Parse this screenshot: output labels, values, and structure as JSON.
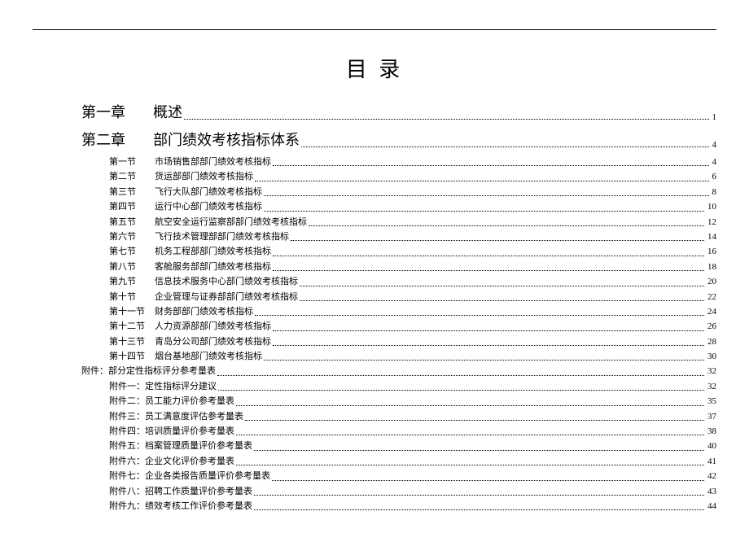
{
  "title": "目 录",
  "chapters": [
    {
      "label": "第一章",
      "text": "概述",
      "page": "1"
    },
    {
      "label": "第二章",
      "text": "部门绩效考核指标体系",
      "page": "4"
    }
  ],
  "sections": [
    {
      "label": "第一节",
      "text": "市场销售部部门绩效考核指标",
      "page": "4"
    },
    {
      "label": "第二节",
      "text": "货运部部门绩效考核指标",
      "page": "6"
    },
    {
      "label": "第三节",
      "text": "飞行大队部门绩效考核指标",
      "page": "8"
    },
    {
      "label": "第四节",
      "text": "运行中心部门绩效考核指标",
      "page": "10"
    },
    {
      "label": "第五节",
      "text": "航空安全运行监察部部门绩效考核指标",
      "page": "12"
    },
    {
      "label": "第六节",
      "text": "飞行技术管理部部门绩效考核指标",
      "page": "14"
    },
    {
      "label": "第七节",
      "text": "机务工程部部门绩效考核指标",
      "page": "16"
    },
    {
      "label": "第八节",
      "text": "客舱服务部部门绩效考核指标",
      "page": "18"
    },
    {
      "label": "第九节",
      "text": "信息技术服务中心部门绩效考核指标",
      "page": "20"
    },
    {
      "label": "第十节",
      "text": "企业管理与证券部部门绩效考核指标",
      "page": "22"
    },
    {
      "label": "第十一节",
      "text": "财务部部门绩效考核指标",
      "page": "24"
    },
    {
      "label": "第十二节",
      "text": "人力资源部部门绩效考核指标",
      "page": "26"
    },
    {
      "label": "第十三节",
      "text": "青岛分公司部门绩效考核指标",
      "page": "28"
    },
    {
      "label": "第十四节",
      "text": "烟台基地部门绩效考核指标",
      "page": "30"
    }
  ],
  "appendixHeader": {
    "text": "附件：部分定性指标评分参考量表",
    "page": "32"
  },
  "appendices": [
    {
      "label": "附件一：",
      "text": "定性指标评分建议",
      "page": "32"
    },
    {
      "label": "附件二：",
      "text": "员工能力评价参考量表",
      "page": "35"
    },
    {
      "label": "附件三：",
      "text": "员工满意度评估参考量表",
      "page": "37"
    },
    {
      "label": "附件四：",
      "text": "培训质量评价参考量表",
      "page": "38"
    },
    {
      "label": "附件五：",
      "text": "档案管理质量评价参考量表",
      "page": "40"
    },
    {
      "label": "附件六：",
      "text": "企业文化评价参考量表",
      "page": "41"
    },
    {
      "label": "附件七：",
      "text": "企业各类报告质量评价参考量表",
      "page": "42"
    },
    {
      "label": "附件八：",
      "text": "招聘工作质量评价参考量表",
      "page": "43"
    },
    {
      "label": "附件九：",
      "text": "绩效考核工作评价参考量表",
      "page": "44"
    }
  ]
}
